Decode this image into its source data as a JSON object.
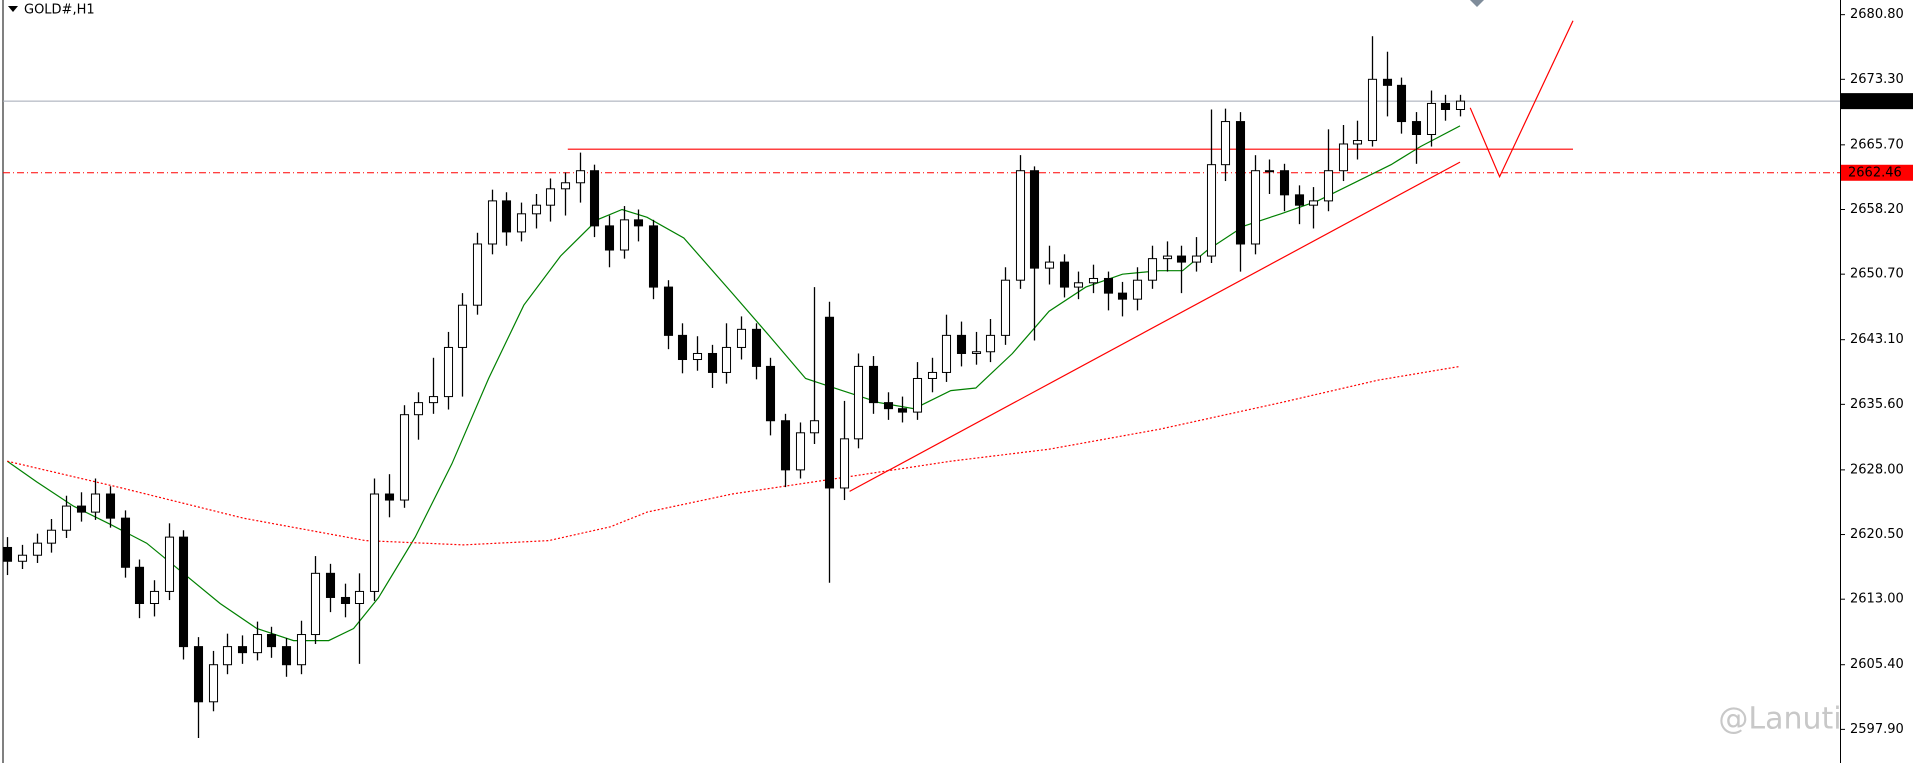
{
  "chart_data": {
    "type": "candlestick",
    "title": "GOLD#,H1",
    "open": [
      2619.0,
      2617.4,
      2618.1,
      2619.5,
      2621.0,
      2623.8,
      2623.1,
      2625.2,
      2622.4,
      2616.7,
      2612.5,
      2613.9,
      2620.2,
      2607.5,
      2601.1,
      2605.4,
      2607.5,
      2606.8,
      2608.9,
      2607.5,
      2605.4,
      2608.9,
      2616.0,
      2613.2,
      2612.5,
      2613.9,
      2625.2,
      2624.5,
      2634.4,
      2635.8,
      2636.5,
      2642.2,
      2647.1,
      2654.2,
      2659.2,
      2655.6,
      2657.7,
      2658.7,
      2660.6,
      2661.3,
      2662.7,
      2656.3,
      2653.5,
      2657.0,
      2656.3,
      2649.2,
      2643.6,
      2640.8,
      2641.5,
      2639.3,
      2642.2,
      2644.3,
      2640.0,
      2633.7,
      2628.0,
      2632.3,
      2645.7,
      2625.9,
      2631.6,
      2640.0,
      2635.8,
      2635.1,
      2634.7,
      2638.6,
      2639.3,
      2643.6,
      2641.5,
      2641.7,
      2643.6,
      2650.0,
      2662.7,
      2651.4,
      2652.1,
      2649.2,
      2649.7,
      2650.2,
      2648.5,
      2647.8,
      2650.0,
      2652.5,
      2652.8,
      2652.1,
      2652.8,
      2663.4,
      2668.4,
      2654.2,
      2662.7,
      2662.7,
      2659.9,
      2658.7,
      2659.2,
      2662.7,
      2665.8,
      2666.2,
      2673.3,
      2672.6,
      2668.4,
      2666.9,
      2670.5,
      2669.8
    ],
    "high": [
      2620.2,
      2619.3,
      2620.6,
      2622.3,
      2625.0,
      2625.4,
      2627.0,
      2626.1,
      2623.3,
      2617.6,
      2615.2,
      2621.8,
      2621.0,
      2608.6,
      2607.0,
      2609.0,
      2608.8,
      2610.4,
      2609.8,
      2608.5,
      2610.5,
      2618.0,
      2617.1,
      2614.8,
      2616.0,
      2627.0,
      2627.5,
      2635.5,
      2637.0,
      2641.0,
      2644.0,
      2648.5,
      2655.5,
      2660.5,
      2660.2,
      2659.0,
      2660.0,
      2661.8,
      2662.5,
      2664.8,
      2663.4,
      2657.5,
      2658.6,
      2658.2,
      2657.0,
      2650.0,
      2645.0,
      2643.5,
      2642.5,
      2645.0,
      2645.8,
      2645.0,
      2641.0,
      2634.5,
      2633.5,
      2649.2,
      2647.5,
      2636.0,
      2641.5,
      2641.2,
      2637.0,
      2636.5,
      2640.5,
      2641.0,
      2646.0,
      2645.2,
      2644.0,
      2645.5,
      2651.5,
      2664.5,
      2663.2,
      2654.0,
      2653.0,
      2651.0,
      2651.8,
      2651.0,
      2649.8,
      2651.5,
      2654.0,
      2654.5,
      2654.0,
      2655.0,
      2669.8,
      2669.9,
      2669.5,
      2664.5,
      2664.0,
      2663.5,
      2661.0,
      2660.8,
      2667.5,
      2668.0,
      2668.5,
      2678.3,
      2676.5,
      2673.5,
      2669.5,
      2672.0,
      2671.5,
      2671.5
    ],
    "low": [
      2615.8,
      2616.5,
      2617.2,
      2618.4,
      2620.1,
      2622.0,
      2622.2,
      2621.3,
      2615.5,
      2610.8,
      2611.0,
      2612.9,
      2606.0,
      2596.9,
      2600.0,
      2604.3,
      2605.5,
      2605.9,
      2606.2,
      2604.0,
      2604.3,
      2607.8,
      2611.5,
      2610.9,
      2605.5,
      2612.8,
      2622.5,
      2623.6,
      2631.5,
      2634.5,
      2635.0,
      2636.5,
      2646.0,
      2653.0,
      2654.0,
      2654.5,
      2656.0,
      2656.8,
      2657.5,
      2659.0,
      2655.0,
      2651.5,
      2652.5,
      2654.5,
      2647.8,
      2642.0,
      2639.2,
      2639.5,
      2637.5,
      2638.0,
      2640.8,
      2638.5,
      2632.0,
      2626.0,
      2627.0,
      2631.0,
      2614.9,
      2624.5,
      2630.5,
      2634.5,
      2633.8,
      2633.5,
      2633.8,
      2637.0,
      2638.2,
      2640.0,
      2640.2,
      2640.5,
      2642.5,
      2649.0,
      2643.0,
      2649.5,
      2648.0,
      2647.8,
      2648.5,
      2646.5,
      2645.8,
      2646.5,
      2649.0,
      2651.0,
      2648.5,
      2651.0,
      2652.0,
      2661.5,
      2651.0,
      2653.0,
      2660.0,
      2658.0,
      2656.5,
      2656.0,
      2658.0,
      2661.5,
      2664.0,
      2665.5,
      2669.0,
      2667.0,
      2663.5,
      2665.5,
      2668.5,
      2669.0
    ],
    "close": [
      2617.4,
      2618.1,
      2619.5,
      2621.0,
      2623.8,
      2623.1,
      2625.2,
      2622.4,
      2616.7,
      2612.5,
      2613.9,
      2620.2,
      2607.5,
      2601.1,
      2605.4,
      2607.5,
      2606.8,
      2608.9,
      2607.5,
      2605.4,
      2608.9,
      2616.0,
      2613.2,
      2612.5,
      2613.9,
      2625.2,
      2624.5,
      2634.4,
      2635.8,
      2636.5,
      2642.2,
      2647.1,
      2654.2,
      2659.2,
      2655.6,
      2657.7,
      2658.7,
      2660.6,
      2661.3,
      2662.7,
      2656.3,
      2653.5,
      2657.0,
      2656.3,
      2649.2,
      2643.6,
      2640.8,
      2641.5,
      2639.3,
      2642.2,
      2644.3,
      2640.0,
      2633.7,
      2628.0,
      2632.3,
      2633.7,
      2625.9,
      2631.6,
      2640.0,
      2635.8,
      2635.1,
      2634.7,
      2638.6,
      2639.3,
      2643.6,
      2641.5,
      2641.7,
      2643.6,
      2650.0,
      2662.7,
      2651.4,
      2652.1,
      2649.2,
      2649.7,
      2650.2,
      2648.5,
      2647.8,
      2650.0,
      2652.5,
      2652.8,
      2652.1,
      2652.8,
      2663.4,
      2668.4,
      2654.2,
      2662.7,
      2662.7,
      2659.9,
      2658.7,
      2659.2,
      2662.7,
      2665.8,
      2666.2,
      2673.3,
      2672.6,
      2668.4,
      2666.9,
      2670.5,
      2669.8,
      2670.77
    ],
    "colors": {
      "up": "#ffffff",
      "down": "#000000",
      "edge": "#000000"
    },
    "xlim": [
      -0.5,
      124.9
    ],
    "ylim": [
      2594.0,
      2682.5
    ],
    "yticks": [
      {
        "value": 2680.8,
        "label": "2680.80"
      },
      {
        "value": 2673.3,
        "label": "2673.30"
      },
      {
        "value": 2665.7,
        "label": "2665.70"
      },
      {
        "value": 2658.2,
        "label": "2658.20"
      },
      {
        "value": 2650.7,
        "label": "2650.70"
      },
      {
        "value": 2643.1,
        "label": "2643.10"
      },
      {
        "value": 2635.6,
        "label": "2635.60"
      },
      {
        "value": 2628.0,
        "label": "2628.00"
      },
      {
        "value": 2620.5,
        "label": "2620.50"
      },
      {
        "value": 2613.0,
        "label": "2613.00"
      },
      {
        "value": 2605.4,
        "label": "2605.40"
      },
      {
        "value": 2597.9,
        "label": "2597.90"
      }
    ],
    "overlays": [
      {
        "color": "#008000",
        "style": "solid",
        "x": [
          0,
          2.0,
          4.5,
          7.0,
          9.5,
          12.0,
          14.5,
          17.0,
          19.5,
          21.9,
          23.6,
          25.3,
          27.8,
          30.3,
          32.8,
          35.2,
          37.7,
          40.2,
          41.9,
          43.6,
          46.1,
          49.4,
          51.9,
          54.4,
          56.9,
          59.4,
          61.8,
          64.3,
          66.0,
          68.5,
          71.0,
          73.5,
          76.0,
          78.5,
          80.1,
          81.8,
          84.3,
          86.8,
          89.3,
          91.8,
          94.3,
          96.3,
          99.0
        ],
        "values": [
          2629.0,
          2626.6,
          2623.8,
          2621.7,
          2619.5,
          2616.0,
          2612.5,
          2609.6,
          2608.2,
          2608.2,
          2609.6,
          2613.2,
          2620.2,
          2628.7,
          2638.6,
          2647.1,
          2652.8,
          2657.0,
          2658.2,
          2657.3,
          2654.9,
          2648.5,
          2643.6,
          2638.6,
          2637.2,
          2635.8,
          2635.1,
          2637.2,
          2637.5,
          2641.5,
          2646.4,
          2649.2,
          2650.7,
          2651.1,
          2651.1,
          2653.5,
          2656.3,
          2657.7,
          2659.2,
          2661.3,
          2663.4,
          2665.5,
          2667.9
        ]
      },
      {
        "color": "#ff0000",
        "style": "dotted",
        "x": [
          0,
          7.8,
          16.1,
          24.4,
          31.1,
          36.9,
          41.1,
          43.6,
          49.4,
          57.7,
          64.3,
          71.0,
          78.5,
          86.8,
          93.4,
          99.0
        ],
        "values": [
          2629.0,
          2625.9,
          2622.4,
          2619.8,
          2619.3,
          2619.8,
          2621.4,
          2623.1,
          2625.2,
          2627.3,
          2629.0,
          2630.4,
          2632.7,
          2635.8,
          2638.4,
          2640.0
        ]
      },
      {
        "color": "#ff0000",
        "style": "solid",
        "x": [
          38.2,
          106.7
        ],
        "values": [
          2665.2,
          2665.2
        ]
      },
      {
        "color": "#ff0000",
        "style": "solid",
        "x": [
          57.4,
          99.0
        ],
        "values": [
          2625.5,
          2663.7
        ]
      },
      {
        "color": "#ff0000",
        "style": "solid",
        "x": [
          99.7,
          101.7,
          106.7
        ],
        "values": [
          2670.0,
          2662.0,
          2680.1
        ]
      }
    ],
    "price_lines": [
      {
        "value": 2670.77,
        "color": "#a0a8b4",
        "style": "solid",
        "label_bg": "#000000"
      },
      {
        "value": 2662.46,
        "color": "#ff0000",
        "style": "dashdot",
        "label_bg": "#ff0000"
      }
    ],
    "watermark": "@Lanuti"
  }
}
